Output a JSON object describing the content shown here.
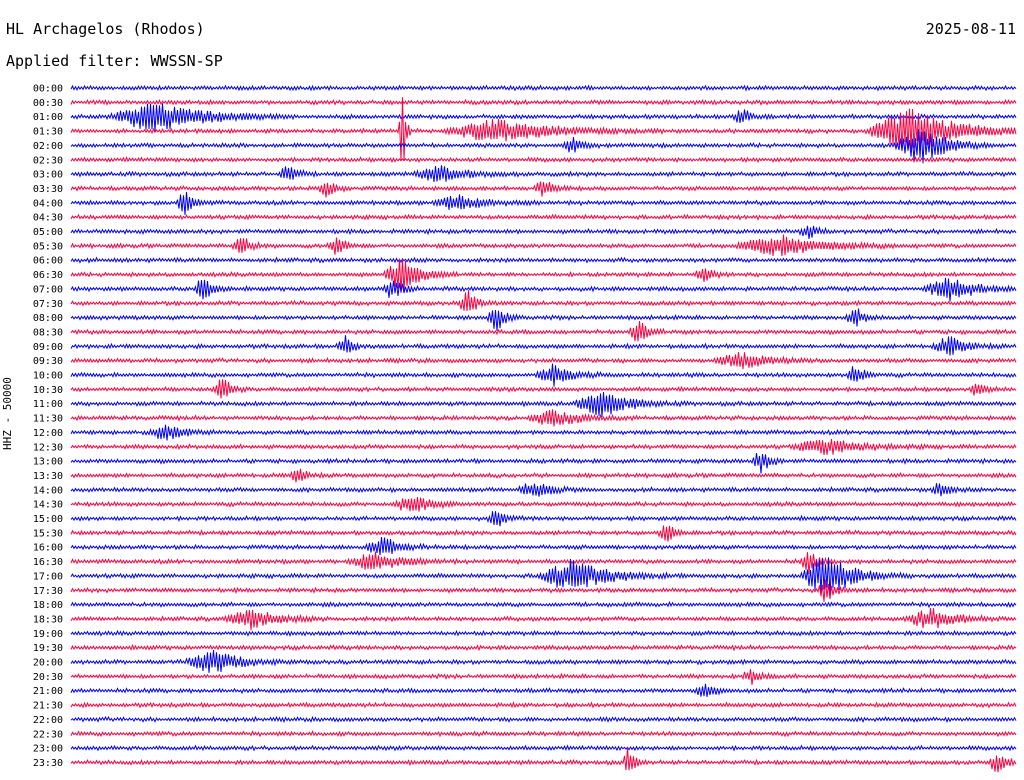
{
  "header": {
    "station": "HL Archagelos (Rhodos)",
    "filter": "Applied filter: WWSSN-SP",
    "date": "2025-08-11"
  },
  "chart_data": {
    "type": "line",
    "title": "HL Archagelos (Rhodos)",
    "ylabel": "HHZ - 50000",
    "colors": [
      "#0000ff",
      "#ff0040"
    ],
    "rows": [
      "00:00",
      "00:30",
      "01:00",
      "01:30",
      "02:00",
      "02:30",
      "03:00",
      "03:30",
      "04:00",
      "04:30",
      "05:00",
      "05:30",
      "06:00",
      "06:30",
      "07:00",
      "07:30",
      "08:00",
      "08:30",
      "09:00",
      "09:30",
      "10:00",
      "10:30",
      "11:00",
      "11:30",
      "12:00",
      "12:30",
      "13:00",
      "13:30",
      "14:00",
      "14:30",
      "15:00",
      "15:30",
      "16:00",
      "16:30",
      "17:00",
      "17:30",
      "18:00",
      "18:30",
      "19:00",
      "19:30",
      "20:00",
      "20:30",
      "21:00",
      "21:30",
      "22:00",
      "22:30",
      "23:00",
      "23:30"
    ],
    "events": [
      {
        "row": 2,
        "x": 0.09,
        "amp": 16,
        "w": 0.05
      },
      {
        "row": 2,
        "x": 0.71,
        "amp": 8,
        "w": 0.01
      },
      {
        "row": 3,
        "x": 0.45,
        "amp": 12,
        "w": 0.06
      },
      {
        "row": 3,
        "x": 0.89,
        "amp": 24,
        "w": 0.05
      },
      {
        "row": 3,
        "x": 0.35,
        "amp": 90,
        "w": 0.003
      },
      {
        "row": 4,
        "x": 0.53,
        "amp": 8,
        "w": 0.01
      },
      {
        "row": 4,
        "x": 0.9,
        "amp": 18,
        "w": 0.03
      },
      {
        "row": 6,
        "x": 0.23,
        "amp": 10,
        "w": 0.01
      },
      {
        "row": 6,
        "x": 0.39,
        "amp": 8,
        "w": 0.03
      },
      {
        "row": 7,
        "x": 0.27,
        "amp": 10,
        "w": 0.01
      },
      {
        "row": 7,
        "x": 0.5,
        "amp": 10,
        "w": 0.01
      },
      {
        "row": 8,
        "x": 0.12,
        "amp": 12,
        "w": 0.01
      },
      {
        "row": 8,
        "x": 0.41,
        "amp": 8,
        "w": 0.03
      },
      {
        "row": 10,
        "x": 0.78,
        "amp": 8,
        "w": 0.01
      },
      {
        "row": 11,
        "x": 0.18,
        "amp": 12,
        "w": 0.01
      },
      {
        "row": 11,
        "x": 0.28,
        "amp": 10,
        "w": 0.01
      },
      {
        "row": 11,
        "x": 0.75,
        "amp": 10,
        "w": 0.05
      },
      {
        "row": 13,
        "x": 0.35,
        "amp": 18,
        "w": 0.02
      },
      {
        "row": 13,
        "x": 0.67,
        "amp": 10,
        "w": 0.01
      },
      {
        "row": 14,
        "x": 0.14,
        "amp": 14,
        "w": 0.01
      },
      {
        "row": 14,
        "x": 0.34,
        "amp": 12,
        "w": 0.01
      },
      {
        "row": 14,
        "x": 0.93,
        "amp": 12,
        "w": 0.03
      },
      {
        "row": 15,
        "x": 0.42,
        "amp": 14,
        "w": 0.01
      },
      {
        "row": 16,
        "x": 0.45,
        "amp": 14,
        "w": 0.01
      },
      {
        "row": 16,
        "x": 0.83,
        "amp": 10,
        "w": 0.01
      },
      {
        "row": 17,
        "x": 0.6,
        "amp": 12,
        "w": 0.01
      },
      {
        "row": 18,
        "x": 0.29,
        "amp": 10,
        "w": 0.01
      },
      {
        "row": 18,
        "x": 0.93,
        "amp": 10,
        "w": 0.02
      },
      {
        "row": 19,
        "x": 0.71,
        "amp": 8,
        "w": 0.03
      },
      {
        "row": 20,
        "x": 0.51,
        "amp": 10,
        "w": 0.02
      },
      {
        "row": 20,
        "x": 0.83,
        "amp": 10,
        "w": 0.01
      },
      {
        "row": 21,
        "x": 0.16,
        "amp": 14,
        "w": 0.01
      },
      {
        "row": 21,
        "x": 0.96,
        "amp": 8,
        "w": 0.01
      },
      {
        "row": 22,
        "x": 0.56,
        "amp": 14,
        "w": 0.03
      },
      {
        "row": 23,
        "x": 0.51,
        "amp": 8,
        "w": 0.03
      },
      {
        "row": 24,
        "x": 0.1,
        "amp": 8,
        "w": 0.02
      },
      {
        "row": 25,
        "x": 0.8,
        "amp": 8,
        "w": 0.04
      },
      {
        "row": 26,
        "x": 0.73,
        "amp": 12,
        "w": 0.01
      },
      {
        "row": 27,
        "x": 0.24,
        "amp": 8,
        "w": 0.01
      },
      {
        "row": 28,
        "x": 0.49,
        "amp": 8,
        "w": 0.02
      },
      {
        "row": 28,
        "x": 0.92,
        "amp": 8,
        "w": 0.01
      },
      {
        "row": 29,
        "x": 0.36,
        "amp": 10,
        "w": 0.02
      },
      {
        "row": 30,
        "x": 0.45,
        "amp": 10,
        "w": 0.01
      },
      {
        "row": 31,
        "x": 0.63,
        "amp": 10,
        "w": 0.01
      },
      {
        "row": 32,
        "x": 0.33,
        "amp": 10,
        "w": 0.02
      },
      {
        "row": 33,
        "x": 0.32,
        "amp": 10,
        "w": 0.03
      },
      {
        "row": 33,
        "x": 0.78,
        "amp": 12,
        "w": 0.01
      },
      {
        "row": 34,
        "x": 0.53,
        "amp": 16,
        "w": 0.04
      },
      {
        "row": 34,
        "x": 0.8,
        "amp": 22,
        "w": 0.03
      },
      {
        "row": 35,
        "x": 0.8,
        "amp": 14,
        "w": 0.01
      },
      {
        "row": 37,
        "x": 0.19,
        "amp": 10,
        "w": 0.03
      },
      {
        "row": 37,
        "x": 0.91,
        "amp": 10,
        "w": 0.03
      },
      {
        "row": 40,
        "x": 0.15,
        "amp": 12,
        "w": 0.03
      },
      {
        "row": 41,
        "x": 0.72,
        "amp": 8,
        "w": 0.01
      },
      {
        "row": 42,
        "x": 0.67,
        "amp": 8,
        "w": 0.01
      },
      {
        "row": 47,
        "x": 0.59,
        "amp": 18,
        "w": 0.006
      },
      {
        "row": 47,
        "x": 0.98,
        "amp": 10,
        "w": 0.01
      }
    ]
  }
}
